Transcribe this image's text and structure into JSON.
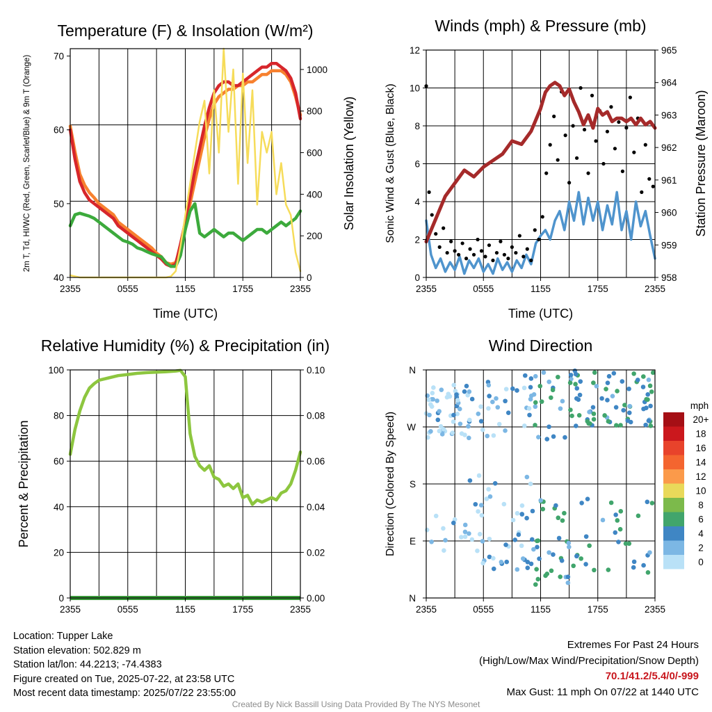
{
  "chart_data": [
    {
      "type": "line",
      "title": "Temperature (F) & Insolation (W/m²)",
      "xlabel": "Time (UTC)",
      "ylabel_left": "2m T, Td, HI/WC (Red, Green, Scarlet/Blue) & 9m T (Orange)",
      "ylabel_right": "Solar Insolation (Yellow)",
      "x_ticks": [
        "2355",
        "0555",
        "1155",
        "1755",
        "2355"
      ],
      "ylim_left": [
        40,
        71
      ],
      "yticks_left": [
        40,
        50,
        60,
        70
      ],
      "ylim_right": [
        0,
        1100
      ],
      "yticks_right": [
        0,
        200,
        400,
        600,
        800,
        1000
      ],
      "grid": true,
      "series": [
        {
          "name": "9m T",
          "color": "#f7812f",
          "axis": "left",
          "x": [
            0,
            0.5,
            1,
            1.5,
            2,
            2.5,
            3,
            3.5,
            4,
            4.5,
            5,
            5.5,
            6,
            6.5,
            7,
            7.5,
            8,
            8.5,
            9,
            9.5,
            10,
            10.5,
            11,
            11.5,
            12,
            12.5,
            13,
            13.5,
            14,
            14.5,
            15,
            15.5,
            16,
            16.5,
            17,
            17.5,
            18,
            18.5,
            19,
            19.5,
            20,
            20.5,
            21,
            21.5,
            22,
            22.5,
            23,
            23.5,
            24
          ],
          "y": [
            60.5,
            57,
            54,
            52.5,
            51.5,
            50.8,
            50,
            49.5,
            49,
            48.5,
            47.5,
            47,
            46.5,
            46,
            45.5,
            45,
            44.5,
            44,
            43.3,
            42.8,
            42,
            41.8,
            42,
            44,
            46.5,
            50,
            53,
            56,
            59,
            61.5,
            63.5,
            64.5,
            65,
            65.5,
            65.5,
            66,
            66,
            66.5,
            66.5,
            67,
            67.5,
            67.5,
            68,
            68,
            68,
            67.5,
            66.5,
            64.5,
            62
          ]
        },
        {
          "name": "2m T",
          "color": "#d7262b",
          "axis": "left",
          "x": [
            0,
            0.5,
            1,
            1.5,
            2,
            2.5,
            3,
            3.5,
            4,
            4.5,
            5,
            5.5,
            6,
            6.5,
            7,
            7.5,
            8,
            8.5,
            9,
            9.5,
            10,
            10.5,
            11,
            11.5,
            12,
            12.5,
            13,
            13.5,
            14,
            14.5,
            15,
            15.5,
            16,
            16.5,
            17,
            17.5,
            18,
            18.5,
            19,
            19.5,
            20,
            20.5,
            21,
            21.5,
            22,
            22.5,
            23,
            23.5,
            24
          ],
          "y": [
            60,
            56,
            53,
            51.5,
            50.5,
            50,
            49.5,
            49,
            48.5,
            48,
            47,
            46.5,
            46,
            45.5,
            45,
            44.5,
            44,
            43.5,
            43,
            42.5,
            41.8,
            41.5,
            41.8,
            44.5,
            47.5,
            51,
            54.5,
            57.5,
            60.5,
            63,
            65,
            66,
            66.5,
            66.5,
            66,
            66,
            66.5,
            67,
            67.5,
            68,
            68.5,
            68.5,
            69,
            69,
            68.5,
            68,
            67,
            65,
            61.5
          ]
        },
        {
          "name": "2m Td",
          "color": "#3caa3c",
          "axis": "left",
          "x": [
            0,
            0.5,
            1,
            1.5,
            2,
            2.5,
            3,
            3.5,
            4,
            4.5,
            5,
            5.5,
            6,
            6.5,
            7,
            7.5,
            8,
            8.5,
            9,
            9.5,
            10,
            10.5,
            11,
            11.5,
            12,
            12.5,
            13,
            13.5,
            14,
            14.5,
            15,
            15.5,
            16,
            16.5,
            17,
            17.5,
            18,
            18.5,
            19,
            19.5,
            20,
            20.5,
            21,
            21.5,
            22,
            22.5,
            23,
            23.5,
            24
          ],
          "y": [
            47,
            48.5,
            48.7,
            48.5,
            48.3,
            48,
            47.5,
            47,
            46.5,
            46,
            45.5,
            45,
            44.8,
            44.5,
            44,
            43.8,
            43.5,
            43.2,
            43,
            42.8,
            42,
            41.5,
            41.5,
            43,
            46.5,
            49,
            50,
            46,
            45.5,
            46,
            46.5,
            46,
            45.5,
            46,
            46,
            45.5,
            45,
            45.5,
            46,
            46.5,
            46.5,
            46,
            46.5,
            47,
            47.5,
            47,
            47.5,
            48,
            49
          ]
        },
        {
          "name": "Solar Insolation",
          "color": "#f6dc5a",
          "axis": "right",
          "x": [
            0,
            1,
            2,
            3,
            4,
            5,
            6,
            7,
            8,
            9,
            10,
            10.5,
            11,
            11.5,
            12,
            12.5,
            13,
            13.5,
            14,
            14.5,
            15,
            15.5,
            16,
            16.5,
            17,
            17.5,
            18,
            18.5,
            19,
            19.5,
            20,
            20.5,
            21,
            21.5,
            22,
            22.5,
            23,
            23.5,
            24
          ],
          "y": [
            10,
            0,
            0,
            0,
            0,
            0,
            0,
            0,
            0,
            0,
            0,
            5,
            30,
            150,
            300,
            450,
            600,
            750,
            850,
            500,
            900,
            600,
            1100,
            700,
            1000,
            450,
            980,
            550,
            900,
            350,
            700,
            600,
            700,
            400,
            550,
            350,
            300,
            120,
            30
          ]
        }
      ]
    },
    {
      "type": "line",
      "title": "Winds (mph) & Pressure (mb)",
      "xlabel": "Time (UTC)",
      "ylabel_left": "Sonic Wind & Gust (Blue, Black)",
      "ylabel_right": "Station Pressure (Maroon)",
      "x_ticks": [
        "2355",
        "0555",
        "1155",
        "1755",
        "2355"
      ],
      "ylim_left": [
        0,
        12
      ],
      "yticks_left": [
        0,
        2,
        4,
        6,
        8,
        10,
        12
      ],
      "ylim_right": [
        958,
        965
      ],
      "yticks_right": [
        958,
        959,
        960,
        961,
        962,
        963,
        964,
        965
      ],
      "grid": true,
      "series": [
        {
          "name": "Sonic Wind",
          "color": "#4f94cd",
          "axis": "left",
          "x": [
            0,
            0.5,
            1,
            1.5,
            2,
            2.5,
            3,
            3.5,
            4,
            4.5,
            5,
            5.5,
            6,
            6.5,
            7,
            7.5,
            8,
            8.5,
            9,
            9.5,
            10,
            10.5,
            11,
            11.5,
            12,
            12.5,
            13,
            13.5,
            14,
            14.5,
            15,
            15.5,
            16,
            16.5,
            17,
            17.5,
            18,
            18.5,
            19,
            19.5,
            20,
            20.5,
            21,
            21.5,
            22,
            22.5,
            23,
            23.5,
            24
          ],
          "y": [
            3,
            1.2,
            0.5,
            1,
            0.3,
            0.8,
            0.4,
            1.1,
            0.2,
            0.9,
            0.5,
            1,
            0.3,
            0.7,
            0.2,
            1,
            0.4,
            0.8,
            0.3,
            0.9,
            0.5,
            1.2,
            0.7,
            1.8,
            2.2,
            2.5,
            2,
            3,
            3.5,
            2.5,
            4,
            3,
            4.5,
            2.8,
            4.2,
            3,
            4,
            2.5,
            3.8,
            2.8,
            4.5,
            2.5,
            3.5,
            2,
            4,
            2.7,
            3.5,
            2.2,
            1
          ]
        },
        {
          "name": "Station Pressure",
          "color": "#a52a2a",
          "axis": "right",
          "x": [
            0,
            1,
            2,
            3,
            4,
            5,
            6,
            7,
            8,
            9,
            10,
            11,
            12,
            12.5,
            13,
            13.5,
            14,
            14.5,
            15,
            15.5,
            16,
            16.5,
            17,
            17.5,
            18,
            18.5,
            19,
            19.5,
            20,
            20.5,
            21,
            21.5,
            22,
            22.5,
            23,
            23.5,
            24
          ],
          "y": [
            959.1,
            959.8,
            960.5,
            960.9,
            961.3,
            961.1,
            961.4,
            961.6,
            961.8,
            962.2,
            962.1,
            962.5,
            963.2,
            963.7,
            963.9,
            964,
            963.9,
            963.6,
            963.8,
            963.4,
            963.1,
            962.7,
            963,
            962.6,
            963.2,
            963,
            963.1,
            962.8,
            962.9,
            962.9,
            962.8,
            962.9,
            962.7,
            962.9,
            962.7,
            962.8,
            962.6
          ]
        }
      ],
      "gust_points": {
        "name": "Gust",
        "color": "#000000",
        "x": [
          0,
          0.3,
          0.6,
          1,
          1.4,
          1.8,
          2.2,
          2.6,
          3,
          3.4,
          3.8,
          4.2,
          4.6,
          5,
          5.4,
          5.8,
          6.2,
          6.6,
          7,
          7.4,
          7.8,
          8.2,
          8.6,
          9,
          9.4,
          9.8,
          10.2,
          10.6,
          11,
          11.4,
          11.8,
          12.2,
          12.6,
          13,
          13.4,
          13.8,
          14.2,
          14.6,
          15,
          15.4,
          15.8,
          16.2,
          16.6,
          17,
          17.4,
          17.8,
          18.2,
          18.6,
          19,
          19.4,
          19.8,
          20.2,
          20.6,
          21,
          21.4,
          21.8,
          22.2,
          22.6,
          23,
          23.4,
          23.8
        ],
        "y": [
          10.1,
          4.5,
          3.3,
          2.3,
          1.6,
          2.6,
          1.3,
          1.9,
          1.4,
          1.2,
          1.8,
          1.0,
          1.5,
          1.2,
          2.0,
          1.4,
          1.1,
          1.7,
          0.9,
          1.3,
          1.9,
          1.2,
          1.0,
          1.6,
          1.3,
          2.2,
          1.1,
          1.5,
          0.9,
          2.5,
          2.0,
          3.2,
          5.5,
          7.0,
          8.5,
          6.2,
          9.8,
          7.5,
          5.0,
          8.0,
          6.3,
          10.0,
          7.8,
          5.5,
          9.6,
          7.2,
          8.8,
          6.0,
          7.7,
          9.0,
          6.8,
          8.2,
          5.6,
          7.9,
          9.5,
          6.6,
          8.4,
          4.5,
          7.0,
          5.2,
          4.8
        ]
      }
    },
    {
      "type": "line",
      "title": "Relative Humidity (%) & Precipitation (in)",
      "xlabel": "",
      "ylabel_left": "Percent & Precipitation",
      "x_ticks": [
        "2355",
        "0555",
        "1155",
        "1755",
        "2355"
      ],
      "ylim_left": [
        0,
        100
      ],
      "yticks_left": [
        0,
        20,
        40,
        60,
        80,
        100
      ],
      "ylim_right": [
        0,
        0.1
      ],
      "yticks_right": [
        "0.00",
        "0.02",
        "0.04",
        "0.06",
        "0.08",
        "0.10"
      ],
      "grid": true,
      "series": [
        {
          "name": "Relative Humidity",
          "color": "#8dc63f",
          "axis": "left",
          "x": [
            0,
            0.5,
            1,
            1.5,
            2,
            2.5,
            3,
            4,
            5,
            6,
            7,
            8,
            9,
            10,
            11,
            11.5,
            12,
            12.5,
            13,
            13.5,
            14,
            14.5,
            15,
            15.5,
            16,
            16.5,
            17,
            17.5,
            18,
            18.5,
            19,
            19.5,
            20,
            20.5,
            21,
            21.5,
            22,
            22.5,
            23,
            23.5,
            24
          ],
          "y": [
            63,
            74,
            82,
            88,
            92,
            94,
            95.5,
            96.5,
            97.5,
            98,
            98.5,
            98.8,
            99,
            99.2,
            99.5,
            99.8,
            97,
            72,
            62,
            58,
            56,
            58,
            53,
            52,
            49,
            50,
            48,
            50,
            44,
            45,
            41,
            43,
            42,
            43,
            44,
            43,
            46,
            47,
            50,
            56,
            64
          ]
        },
        {
          "name": "Precipitation",
          "color": "#3a9a3a",
          "axis": "right",
          "x": [
            0,
            24
          ],
          "y": [
            0,
            0
          ]
        }
      ]
    },
    {
      "type": "scatter",
      "title": "Wind Direction",
      "ylabel": "Direction (Colored By Speed)",
      "x_ticks": [
        "2355",
        "0555",
        "1155",
        "1755",
        "2355"
      ],
      "y_ticks": [
        "N",
        "E",
        "S",
        "W",
        "N"
      ],
      "grid": true,
      "colorbar": {
        "unit": "mph",
        "labels": [
          "20+",
          "18",
          "16",
          "14",
          "12",
          "10",
          "8",
          "6",
          "4",
          "2",
          "0"
        ],
        "colors": [
          "#a50f15",
          "#cb181d",
          "#e8432b",
          "#f4652f",
          "#fb9a4a",
          "#e9d95a",
          "#7cba4b",
          "#41a56c",
          "#3f86c4",
          "#7cb7e4",
          "#b9e1f7"
        ]
      }
    }
  ],
  "info": {
    "location": "Location: Tupper Lake",
    "elevation": "Station elevation: 502.829 m",
    "latlon": "Station lat/lon: 44.2213; -74.4383",
    "created": "Figure created on Tue, 2025-07-22, at 23:58 UTC",
    "recent": "Most recent data timestamp: 2025/07/22 23:55:00"
  },
  "extremes": {
    "title": "Extremes For Past 24 Hours",
    "legend": "(High/Low/Max Wind/Precipitation/Snow Depth)",
    "values": "70.1/41.2/5.4/0/-999",
    "gust": "Max Gust: 11 mph On 07/22 at 1440 UTC"
  },
  "credit": "Created By Nick Bassill Using Data Provided By The NYS Mesonet"
}
